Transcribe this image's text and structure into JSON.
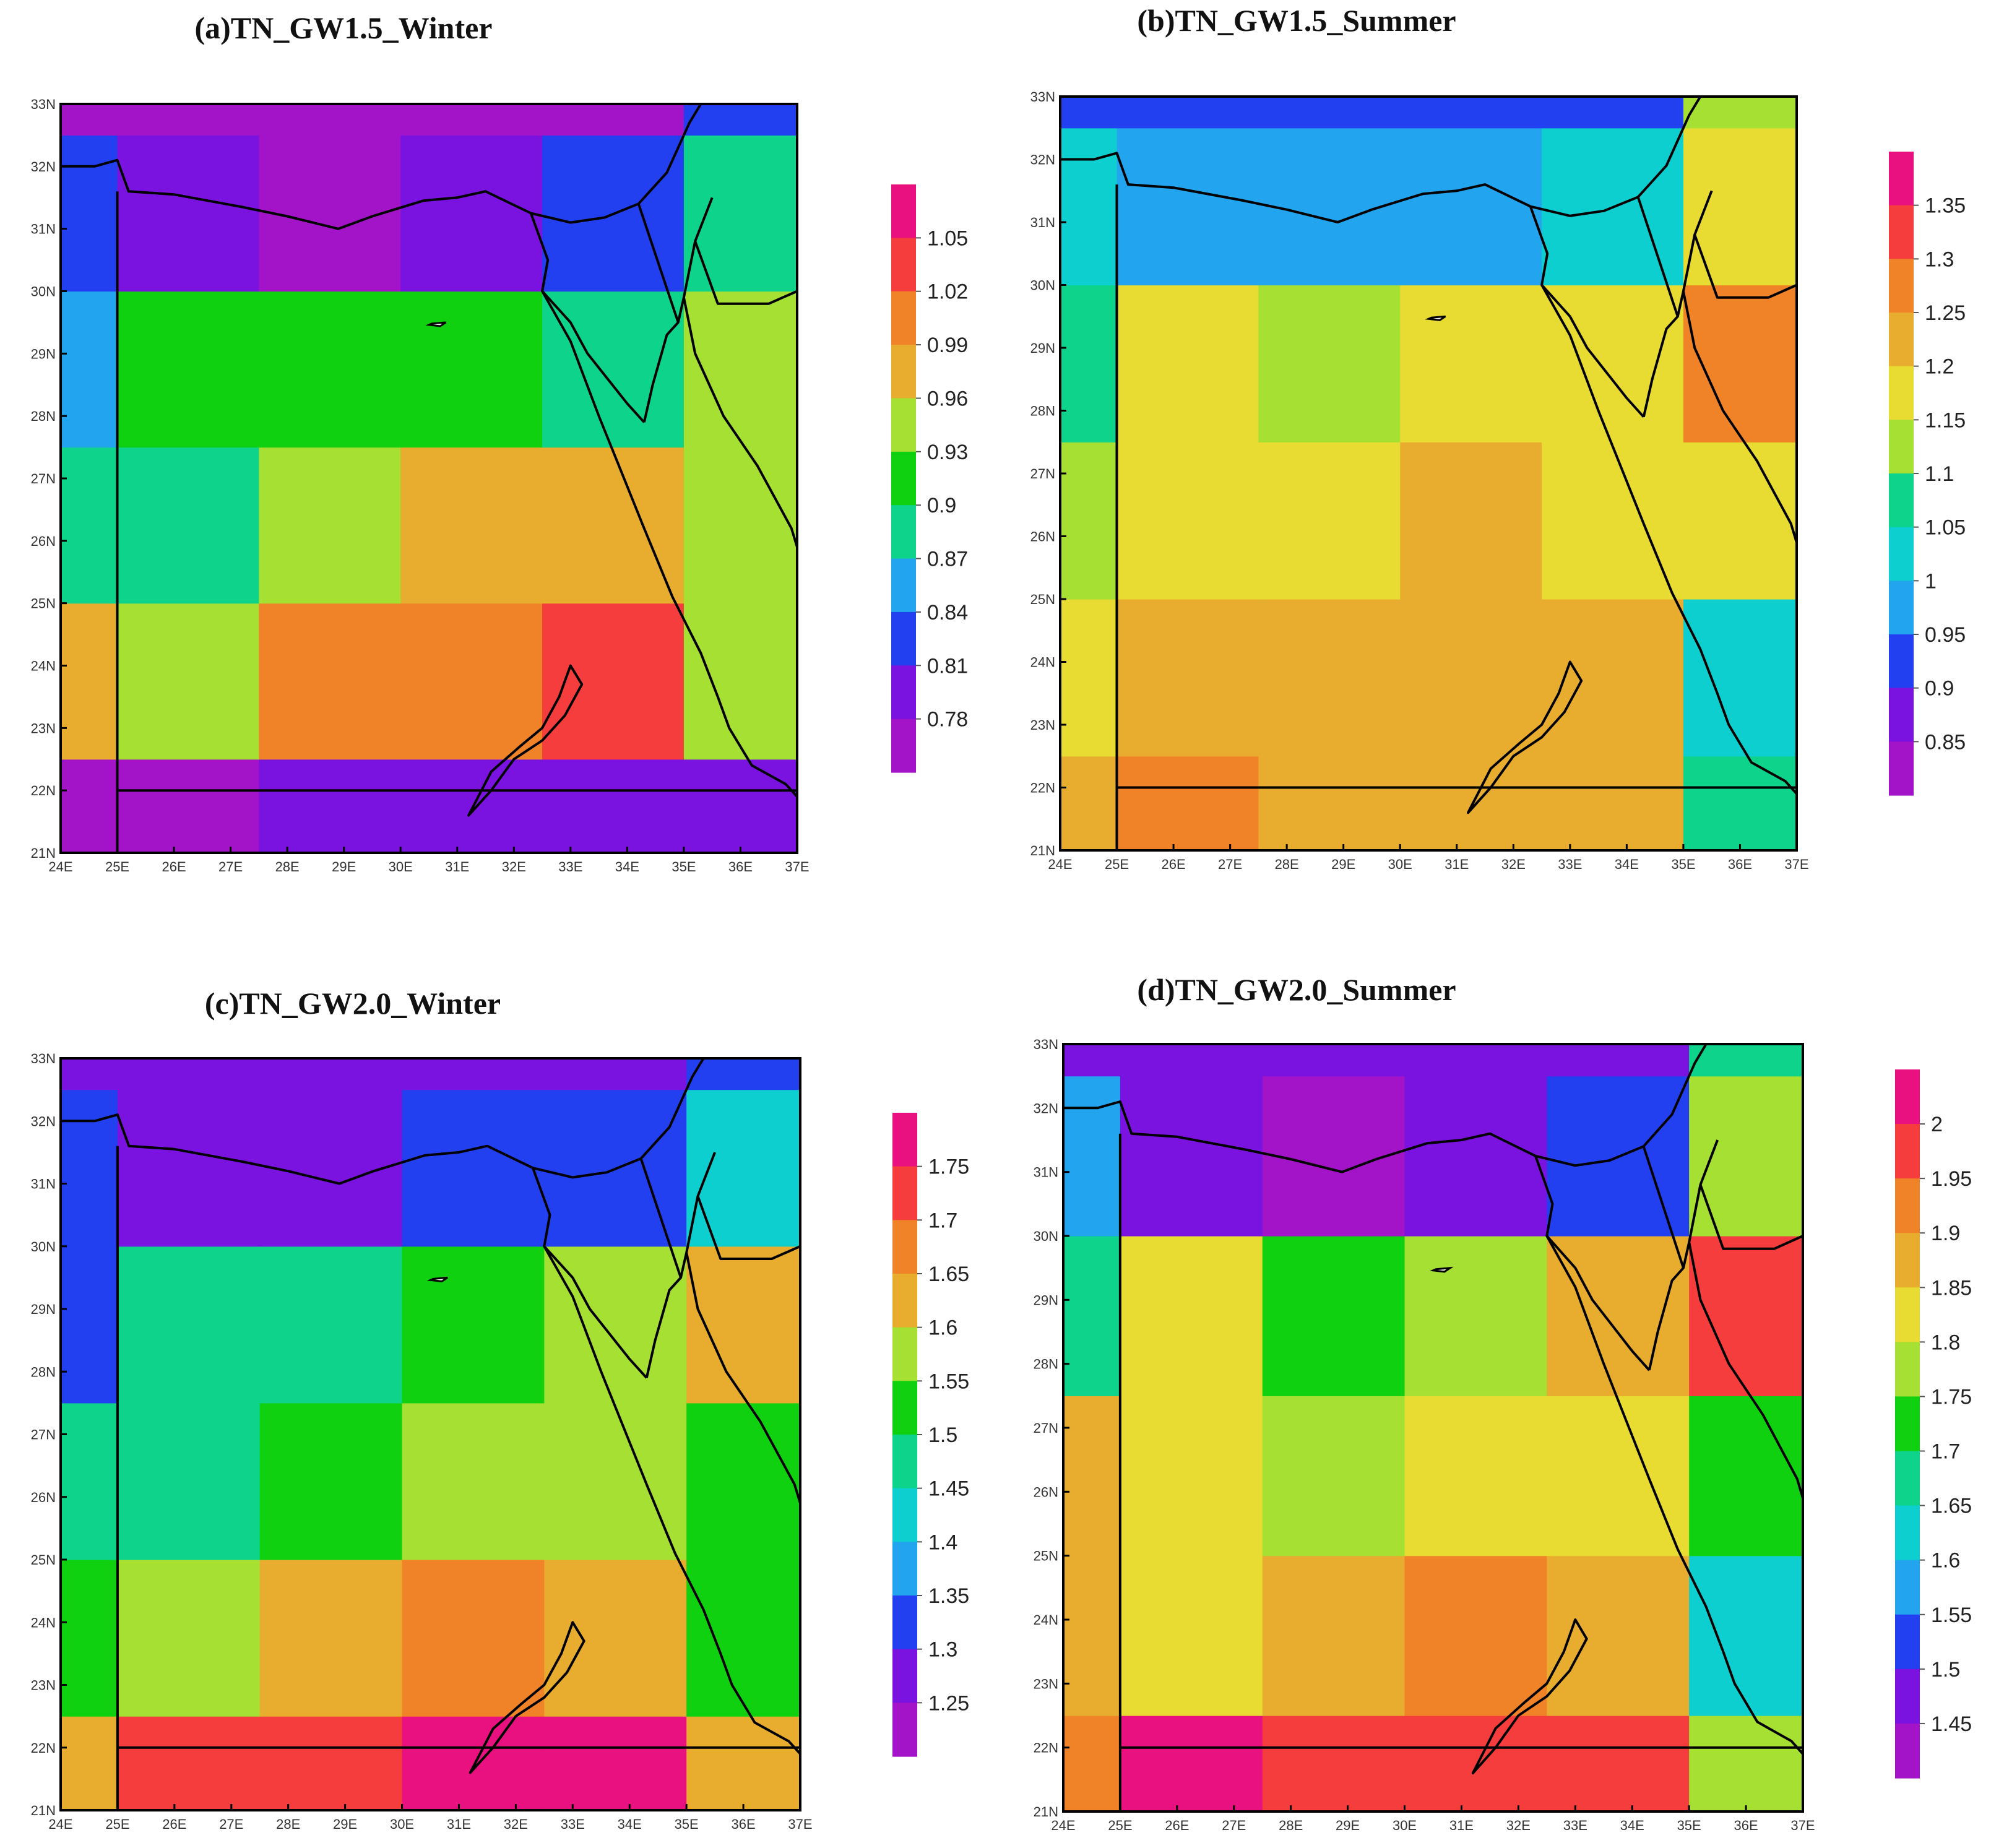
{
  "figure": {
    "x_ticks": [
      "24E",
      "25E",
      "26E",
      "27E",
      "28E",
      "29E",
      "30E",
      "31E",
      "32E",
      "33E",
      "34E",
      "35E",
      "36E",
      "37E"
    ],
    "y_ticks": [
      "21N",
      "22N",
      "23N",
      "24N",
      "25N",
      "26N",
      "27N",
      "28N",
      "29N",
      "30N",
      "31N",
      "32N",
      "33N"
    ]
  },
  "grid": {
    "lon_edges": [
      24,
      25,
      27.5,
      30,
      32.5,
      35,
      37
    ],
    "lat_edges": [
      21,
      22.5,
      25,
      27.5,
      30,
      32.5,
      33
    ],
    "extent": {
      "lon": [
        24,
        37
      ],
      "lat": [
        21,
        33
      ]
    }
  },
  "panels": [
    {
      "id": "a",
      "title": "(a)TN_GW1.5_Winter",
      "colorbar": {
        "labels": [
          "1.05",
          "1.02",
          "0.99",
          "0.96",
          "0.93",
          "0.9",
          "0.87",
          "0.84",
          "0.81",
          "0.78"
        ],
        "colors": [
          "#e8117f",
          "#f53d3d",
          "#f08228",
          "#e8ad2e",
          "#a5e032",
          "#0fd10f",
          "#0dd48a",
          "#22a4ee",
          "#2340f0",
          "#7a12e0",
          "#a314c8"
        ]
      },
      "cells": [
        [
          10,
          10,
          9,
          9,
          9,
          9
        ],
        [
          3,
          4,
          2,
          2,
          1,
          4
        ],
        [
          6,
          6,
          4,
          3,
          3,
          4
        ],
        [
          7,
          5,
          5,
          5,
          6,
          4
        ],
        [
          8,
          9,
          10,
          9,
          8,
          6
        ],
        [
          10,
          10,
          10,
          10,
          10,
          8
        ]
      ]
    },
    {
      "id": "b",
      "title": "(b)TN_GW1.5_Summer",
      "colorbar": {
        "labels": [
          "1.35",
          "1.3",
          "1.25",
          "1.2",
          "1.15",
          "1.1",
          "1.05",
          "1",
          "0.95",
          "0.9",
          "0.85"
        ],
        "colors": [
          "#e8117f",
          "#f53d3d",
          "#f08228",
          "#e8ad2e",
          "#e8dc32",
          "#a5e032",
          "#0dd48a",
          "#0ecfcf",
          "#22a4ee",
          "#2340f0",
          "#7a12e0",
          "#a314c8"
        ]
      },
      "cells": [
        [
          3,
          2,
          3,
          3,
          3,
          6
        ],
        [
          4,
          3,
          3,
          3,
          3,
          7
        ],
        [
          5,
          4,
          4,
          3,
          4,
          4
        ],
        [
          6,
          4,
          5,
          4,
          4,
          2
        ],
        [
          7,
          8,
          8,
          8,
          7,
          4
        ],
        [
          9,
          9,
          9,
          9,
          9,
          5
        ]
      ]
    },
    {
      "id": "c",
      "title": "(c)TN_GW2.0_Winter",
      "colorbar": {
        "labels": [
          "1.75",
          "1.7",
          "1.65",
          "1.6",
          "1.55",
          "1.5",
          "1.45",
          "1.4",
          "1.35",
          "1.3",
          "1.25"
        ],
        "colors": [
          "#e8117f",
          "#f53d3d",
          "#f08228",
          "#e8ad2e",
          "#a5e032",
          "#0fd10f",
          "#0dd48a",
          "#0ecfcf",
          "#22a4ee",
          "#2340f0",
          "#7a12e0",
          "#a314c8"
        ]
      },
      "cells": [
        [
          3,
          1,
          1,
          0,
          0,
          3
        ],
        [
          5,
          4,
          3,
          2,
          3,
          5
        ],
        [
          6,
          6,
          5,
          4,
          4,
          5
        ],
        [
          9,
          6,
          6,
          5,
          4,
          3
        ],
        [
          9,
          10,
          10,
          9,
          9,
          7
        ],
        [
          10,
          10,
          10,
          10,
          10,
          9
        ]
      ]
    },
    {
      "id": "d",
      "title": "(d)TN_GW2.0_Summer",
      "colorbar": {
        "labels": [
          "2",
          "1.95",
          "1.9",
          "1.85",
          "1.8",
          "1.75",
          "1.7",
          "1.65",
          "1.6",
          "1.55",
          "1.5",
          "1.45"
        ],
        "colors": [
          "#e8117f",
          "#f53d3d",
          "#f08228",
          "#e8ad2e",
          "#e8dc32",
          "#a5e032",
          "#0fd10f",
          "#0dd48a",
          "#0ecfcf",
          "#22a4ee",
          "#2340f0",
          "#7a12e0",
          "#a314c8"
        ]
      },
      "cells": [
        [
          2,
          0,
          1,
          1,
          1,
          5
        ],
        [
          3,
          4,
          3,
          2,
          3,
          8
        ],
        [
          3,
          4,
          5,
          4,
          4,
          6
        ],
        [
          7,
          4,
          6,
          5,
          3,
          1
        ],
        [
          9,
          11,
          12,
          11,
          10,
          5
        ],
        [
          11,
          11,
          11,
          11,
          11,
          7
        ]
      ]
    }
  ],
  "geo": {
    "coast_med": [
      [
        24,
        32
      ],
      [
        24.6,
        32
      ],
      [
        25,
        32.1
      ],
      [
        25.2,
        31.6
      ],
      [
        26,
        31.55
      ],
      [
        27.2,
        31.35
      ],
      [
        28,
        31.2
      ],
      [
        28.9,
        31
      ],
      [
        29.5,
        31.2
      ],
      [
        30.4,
        31.45
      ],
      [
        31,
        31.5
      ],
      [
        31.5,
        31.6
      ],
      [
        32.3,
        31.25
      ],
      [
        33,
        31.1
      ],
      [
        33.6,
        31.18
      ],
      [
        34.2,
        31.4
      ],
      [
        34.7,
        31.9
      ],
      [
        35.1,
        32.7
      ],
      [
        35.3,
        33
      ]
    ],
    "coast_west_sinai": [
      [
        32.3,
        31.25
      ],
      [
        32.6,
        30.5
      ],
      [
        32.5,
        30
      ],
      [
        33,
        29.5
      ],
      [
        33.3,
        29
      ],
      [
        34,
        28.2
      ],
      [
        34.3,
        27.9
      ]
    ],
    "coast_east_sinai": [
      [
        34.3,
        27.9
      ],
      [
        34.45,
        28.5
      ],
      [
        34.7,
        29.3
      ],
      [
        34.9,
        29.5
      ],
      [
        35,
        29.9
      ],
      [
        35.2,
        30.8
      ],
      [
        35.5,
        31.5
      ]
    ],
    "coast_red_sea": [
      [
        32.5,
        30
      ],
      [
        33,
        29.2
      ],
      [
        33.5,
        28
      ],
      [
        33.9,
        27.1
      ],
      [
        34.3,
        26.2
      ],
      [
        34.8,
        25.1
      ],
      [
        35.3,
        24.2
      ],
      [
        35.6,
        23.5
      ],
      [
        35.8,
        23
      ],
      [
        36.2,
        22.4
      ],
      [
        36.8,
        22.1
      ],
      [
        37,
        21.9
      ]
    ],
    "coast_arabia": [
      [
        35,
        29.9
      ],
      [
        35.2,
        29
      ],
      [
        35.7,
        28
      ],
      [
        36.3,
        27.2
      ],
      [
        36.9,
        26.2
      ],
      [
        37,
        25.9
      ]
    ],
    "border_egypt_libya": [
      [
        25,
        21
      ],
      [
        25,
        31.6
      ]
    ],
    "border_egypt_sudan": [
      [
        25,
        22
      ],
      [
        31.4,
        22
      ],
      [
        33.3,
        22
      ],
      [
        37,
        22
      ]
    ],
    "border_sinai": [
      [
        34.2,
        31.4
      ],
      [
        34.9,
        29.5
      ]
    ],
    "border_levant": [
      [
        35.2,
        30.8
      ],
      [
        35.6,
        29.8
      ],
      [
        36.5,
        29.8
      ],
      [
        37,
        30
      ]
    ],
    "lake_nasser": [
      [
        31.2,
        21.6
      ],
      [
        31.6,
        22.3
      ],
      [
        32.1,
        22.7
      ],
      [
        32.5,
        23
      ],
      [
        32.8,
        23.5
      ],
      [
        33.0,
        24.0
      ],
      [
        33.2,
        23.7
      ],
      [
        32.9,
        23.2
      ],
      [
        32.5,
        22.8
      ],
      [
        32.0,
        22.5
      ],
      [
        31.6,
        22.0
      ],
      [
        31.2,
        21.6
      ]
    ],
    "qarun": [
      [
        30.55,
        29.48
      ],
      [
        30.8,
        29.5
      ],
      [
        30.7,
        29.44
      ],
      [
        30.5,
        29.46
      ]
    ]
  }
}
